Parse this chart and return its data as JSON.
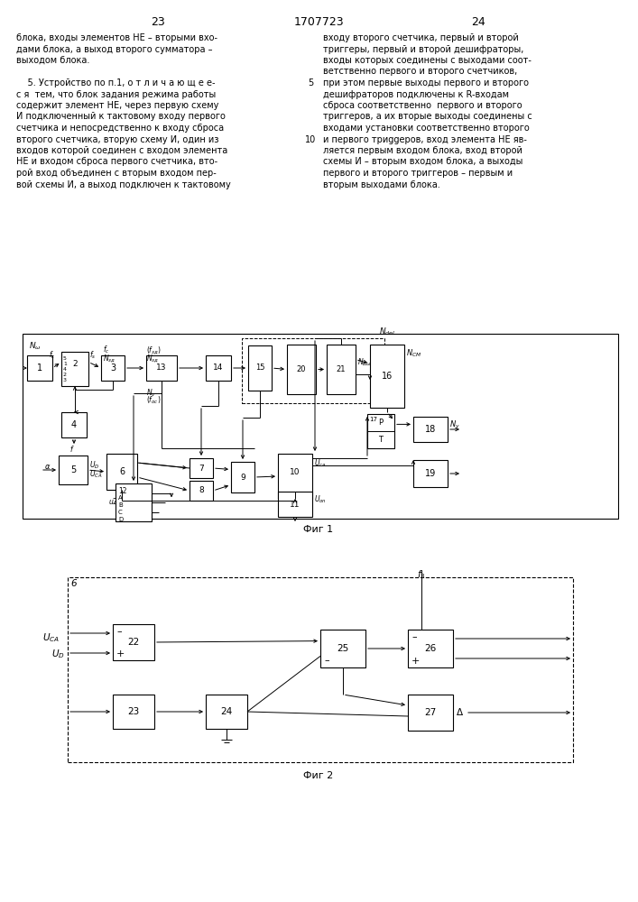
{
  "page_numbers": [
    "23",
    "1707723",
    "24"
  ],
  "left_text": [
    "блока, входы элементов НЕ – вторыми вхо-",
    "дами блока, а выход второго сумматора –",
    "выходом блока.",
    "",
    "    5. Устройство по п.1, о т л и ч а ю щ е е-",
    "с я  тем, что блок задания режима работы",
    "содержит элемент НЕ, через первую схему",
    "И подключенный к тактовому входу первого",
    "счетчика и непосредственно к входу сброса",
    "второго счетчика, вторую схему И, один из",
    "входов которой соединен с входом элемента",
    "НЕ и входом сброса первого счетчика, вто-",
    "рой вход объединен с вторым входом пер-",
    "вой схемы И, а выход подключен к тактовому"
  ],
  "right_text": [
    "входу второго счетчика, первый и второй",
    "триггеры, первый и второй дешифраторы,",
    "входы которых соединены с выходами соот-",
    "ветственно первого и второго счетчиков,",
    "при этом первые выходы первого и второго",
    "дешифраторов подключены к R-входам",
    "сброса соответственно  первого и второго",
    "триггеров, а их вторые выходы соединены с",
    "входами установки соответственно второго",
    "и первого триggеров, вход элемента НЕ яв-",
    "ляется первым входом блока, вход второй",
    "схемы И – вторым входом блока, а выходы",
    "первого и второго триггеров – первым и",
    "вторым выходами блока."
  ],
  "fig1_caption": "Фиг 1",
  "fig2_caption": "Фиг 2",
  "background": "#ffffff",
  "line_color": "#000000"
}
